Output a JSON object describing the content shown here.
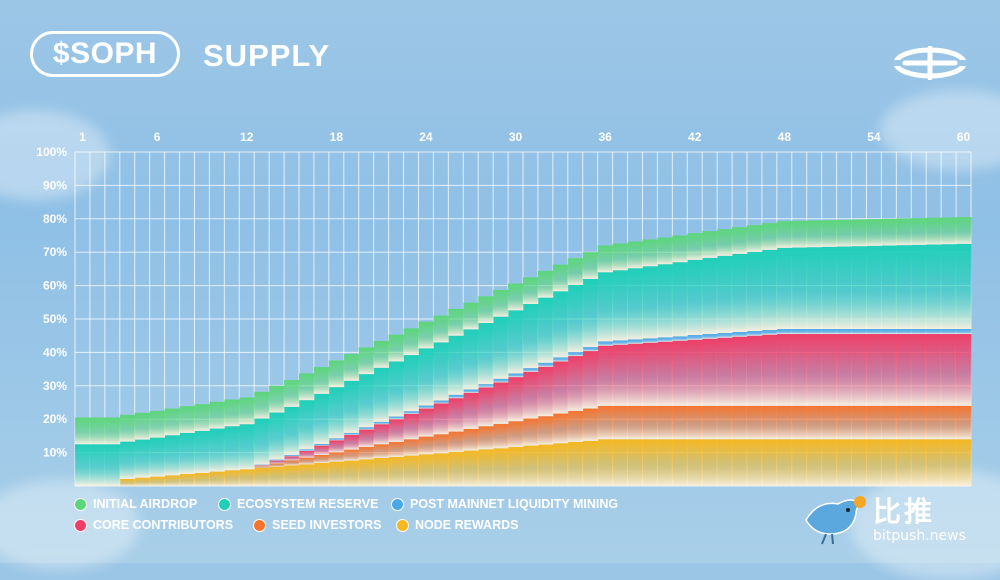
{
  "header": {
    "ticker": "$SOPH",
    "title": "SUPPLY"
  },
  "watermark": {
    "cn": "比推",
    "en": "bitpush.news"
  },
  "colors": {
    "initial_airdrop": "#5cd67a",
    "ecosystem_reserve": "#1fcfb9",
    "post_mainnet_liquidity_mining": "#4aa8e8",
    "core_contributors": "#ee3f68",
    "seed_investors": "#f5752f",
    "node_rewards": "#f5b821"
  },
  "chart_data": {
    "type": "area",
    "stacked": true,
    "x": [
      1,
      2,
      3,
      4,
      5,
      6,
      7,
      8,
      9,
      10,
      11,
      12,
      13,
      14,
      15,
      16,
      17,
      18,
      19,
      20,
      21,
      22,
      23,
      24,
      25,
      26,
      27,
      28,
      29,
      30,
      31,
      32,
      33,
      34,
      35,
      36,
      37,
      38,
      39,
      40,
      41,
      42,
      43,
      44,
      45,
      46,
      47,
      48,
      49,
      50,
      51,
      52,
      53,
      54,
      55,
      56,
      57,
      58,
      59,
      60
    ],
    "x_ticks": [
      "1",
      "6",
      "12",
      "18",
      "24",
      "30",
      "36",
      "42",
      "48",
      "54",
      "60"
    ],
    "y_ticks": [
      "10%",
      "20%",
      "30%",
      "40%",
      "50%",
      "60%",
      "70%",
      "80%",
      "90%",
      "100%"
    ],
    "ylim": [
      0,
      100
    ],
    "grid": true,
    "legend_position": "bottom-left",
    "series": [
      {
        "name": "NODE REWARDS",
        "color_key": "node_rewards",
        "values": [
          0,
          0,
          0,
          2.1,
          2.5,
          2.8,
          3.2,
          3.6,
          3.9,
          4.3,
          4.7,
          5.0,
          5.4,
          5.8,
          6.2,
          6.5,
          6.9,
          7.3,
          7.6,
          8.0,
          8.4,
          8.7,
          9.1,
          9.5,
          9.8,
          10.2,
          10.6,
          11.0,
          11.3,
          11.7,
          12.1,
          12.4,
          12.8,
          13.2,
          13.5,
          14.0,
          14.0,
          14.0,
          14.0,
          14.0,
          14.0,
          14.0,
          14.0,
          14.0,
          14.0,
          14.0,
          14.0,
          14.0,
          14.0,
          14.0,
          14.0,
          14.0,
          14.0,
          14.0,
          14.0,
          14.0,
          14.0,
          14.0,
          14.0,
          14.0
        ]
      },
      {
        "name": "SEED INVESTORS",
        "values": [
          0,
          0,
          0,
          0,
          0,
          0,
          0,
          0,
          0,
          0,
          0,
          0,
          0.5,
          1.0,
          1.5,
          2.0,
          2.4,
          2.8,
          3.3,
          3.7,
          4.1,
          4.5,
          4.9,
          5.3,
          5.7,
          6.1,
          6.5,
          6.9,
          7.3,
          7.7,
          8.1,
          8.5,
          8.9,
          9.3,
          9.7,
          10.0,
          10.0,
          10.0,
          10.0,
          10.0,
          10.0,
          10.0,
          10.0,
          10.0,
          10.0,
          10.0,
          10.0,
          10.0,
          10.0,
          10.0,
          10.0,
          10.0,
          10.0,
          10.0,
          10.0,
          10.0,
          10.0,
          10.0,
          10.0,
          10.0
        ]
      },
      {
        "name": "CORE CONTRIBUTORS",
        "values": [
          0,
          0,
          0,
          0,
          0,
          0,
          0,
          0,
          0,
          0,
          0,
          0,
          0.3,
          0.8,
          1.2,
          2.0,
          2.8,
          3.6,
          4.4,
          5.2,
          6.0,
          6.8,
          7.6,
          8.4,
          9.2,
          10.0,
          10.8,
          11.6,
          12.4,
          13.2,
          14.0,
          14.8,
          15.6,
          16.4,
          17.2,
          18.0,
          18.3,
          18.6,
          18.9,
          19.2,
          19.5,
          19.8,
          20.1,
          20.4,
          20.7,
          21.0,
          21.3,
          21.5,
          21.5,
          21.5,
          21.5,
          21.5,
          21.5,
          21.5,
          21.5,
          21.5,
          21.5,
          21.5,
          21.5,
          21.5
        ]
      },
      {
        "name": "POST MAINNET LIQUIDITY MINING",
        "values": [
          0,
          0,
          0,
          0,
          0,
          0,
          0,
          0,
          0,
          0,
          0,
          0,
          0.2,
          0.3,
          0.4,
          0.5,
          0.5,
          0.6,
          0.6,
          0.7,
          0.7,
          0.8,
          0.8,
          0.9,
          0.9,
          1.0,
          1.0,
          1.0,
          1.1,
          1.1,
          1.1,
          1.2,
          1.2,
          1.2,
          1.2,
          1.3,
          1.3,
          1.3,
          1.3,
          1.3,
          1.3,
          1.4,
          1.4,
          1.4,
          1.4,
          1.4,
          1.4,
          1.5,
          1.5,
          1.5,
          1.5,
          1.5,
          1.5,
          1.5,
          1.5,
          1.5,
          1.5,
          1.5,
          1.5,
          1.5
        ]
      },
      {
        "name": "ECOSYSTEM RESERVE",
        "values": [
          12.5,
          12.5,
          12.5,
          11.2,
          11.4,
          11.7,
          12.0,
          12.3,
          12.6,
          12.9,
          13.2,
          13.5,
          13.8,
          14.1,
          14.4,
          14.7,
          15.0,
          15.3,
          15.6,
          15.9,
          16.2,
          16.5,
          16.8,
          17.1,
          17.4,
          17.7,
          18.0,
          18.3,
          18.6,
          18.9,
          19.2,
          19.5,
          19.8,
          20.1,
          20.4,
          20.7,
          21.0,
          21.3,
          21.6,
          21.9,
          22.2,
          22.5,
          22.8,
          23.1,
          23.4,
          23.7,
          24.0,
          24.3,
          24.4,
          24.5,
          24.6,
          24.7,
          24.8,
          24.9,
          25.0,
          25.1,
          25.2,
          25.3,
          25.4,
          25.5
        ]
      },
      {
        "name": "INITIAL AIRDROP",
        "values": [
          8.0,
          8.0,
          8.0,
          8.0,
          8.0,
          8.0,
          8.0,
          8.0,
          8.0,
          8.0,
          8.0,
          8.0,
          8.0,
          8.0,
          8.0,
          8.0,
          8.0,
          8.0,
          8.0,
          8.0,
          8.0,
          8.0,
          8.0,
          8.0,
          8.0,
          8.0,
          8.0,
          8.0,
          8.0,
          8.0,
          8.0,
          8.0,
          8.0,
          8.0,
          8.0,
          8.0,
          8.0,
          8.0,
          8.0,
          8.0,
          8.0,
          8.0,
          8.0,
          8.0,
          8.0,
          8.0,
          8.0,
          8.0,
          8.0,
          8.0,
          8.0,
          8.0,
          8.0,
          8.0,
          8.0,
          8.0,
          8.0,
          8.0,
          8.0,
          8.0
        ]
      }
    ]
  },
  "legend": [
    {
      "label": "INITIAL AIRDROP",
      "color_key": "initial_airdrop"
    },
    {
      "label": "ECOSYSTEM RESERVE",
      "color_key": "ecosystem_reserve"
    },
    {
      "label": "POST MAINNET LIQUIDITY MINING",
      "color_key": "post_mainnet_liquidity_mining"
    },
    {
      "label": "CORE CONTRIBUTORS",
      "color_key": "core_contributors"
    },
    {
      "label": "SEED INVESTORS",
      "color_key": "seed_investors"
    },
    {
      "label": "NODE REWARDS",
      "color_key": "node_rewards"
    }
  ]
}
